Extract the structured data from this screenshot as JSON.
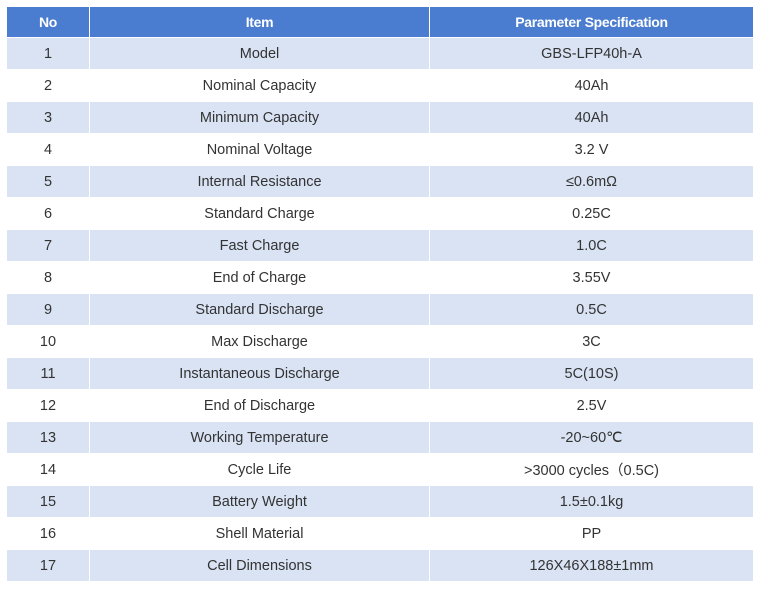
{
  "table": {
    "headers": [
      "No",
      "Item",
      "Parameter Specification"
    ],
    "rows": [
      {
        "no": "1",
        "item": "Model",
        "spec": "GBS-LFP40h-A"
      },
      {
        "no": "2",
        "item": "Nominal Capacity",
        "spec": "40Ah"
      },
      {
        "no": "3",
        "item": "Minimum Capacity",
        "spec": "40Ah"
      },
      {
        "no": "4",
        "item": "Nominal Voltage",
        "spec": "3.2 V"
      },
      {
        "no": "5",
        "item": "Internal Resistance",
        "spec": "≤0.6mΩ"
      },
      {
        "no": "6",
        "item": "Standard Charge",
        "spec": "0.25C"
      },
      {
        "no": "7",
        "item": "Fast Charge",
        "spec": "1.0C"
      },
      {
        "no": "8",
        "item": "End of Charge",
        "spec": "3.55V"
      },
      {
        "no": "9",
        "item": "Standard Discharge",
        "spec": "0.5C"
      },
      {
        "no": "10",
        "item": "Max Discharge",
        "spec": "3C"
      },
      {
        "no": "11",
        "item": "Instantaneous Discharge",
        "spec": "5C(10S)"
      },
      {
        "no": "12",
        "item": "End of Discharge",
        "spec": "2.5V"
      },
      {
        "no": "13",
        "item": "Working Temperature",
        "spec": "-20~60℃"
      },
      {
        "no": "14",
        "item": "Cycle Life",
        "spec": ">3000 cycles（0.5C)"
      },
      {
        "no": "15",
        "item": "Battery Weight",
        "spec": "1.5±0.1kg"
      },
      {
        "no": "16",
        "item": "Shell Material",
        "spec": "PP"
      },
      {
        "no": "17",
        "item": "Cell Dimensions",
        "spec": "126X46X188±1mm"
      }
    ]
  },
  "colors": {
    "header_bg": "#4a7ccf",
    "header_text": "#ffffff",
    "row_alt_bg": "#d9e3f4",
    "row_bg": "#ffffff",
    "cell_text": "#333333"
  }
}
